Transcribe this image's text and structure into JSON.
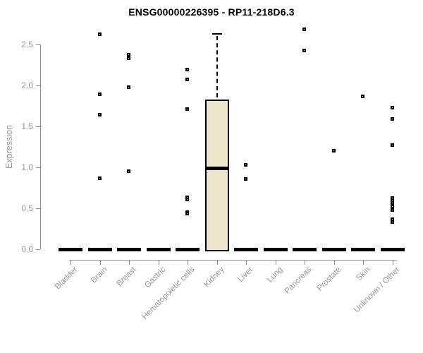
{
  "header": {
    "title": "ENSG00000226395 - RP11-218D6.3"
  },
  "chart_data": {
    "type": "boxplot",
    "title": "ENSG00000226395 - RP11-218D6.3",
    "xlabel": "",
    "ylabel": "Expression",
    "ylim": [
      0,
      2.7
    ],
    "yticks": [
      "0.0",
      "0.5",
      "1.0",
      "1.5",
      "2.0",
      "2.5"
    ],
    "grid": false,
    "legend": null,
    "categories": [
      "Bladder",
      "Brain",
      "Breast",
      "Gastric",
      "Hematopoietic cells",
      "Kidney",
      "Liver",
      "Lung",
      "Pancreas",
      "Prostate",
      "Skin",
      "Unknown / Other"
    ],
    "boxes": [
      {
        "category": "Bladder",
        "median": 0,
        "q1": 0,
        "q3": 0,
        "whisker_low": 0,
        "whisker_high": 0,
        "outliers": []
      },
      {
        "category": "Brain",
        "median": 0,
        "q1": 0,
        "q3": 0,
        "whisker_low": 0,
        "whisker_high": 0,
        "outliers": [
          2.62,
          1.89,
          1.64,
          0.86
        ]
      },
      {
        "category": "Breast",
        "median": 0,
        "q1": 0,
        "q3": 0,
        "whisker_low": 0,
        "whisker_high": 0,
        "outliers": [
          2.37,
          2.33,
          1.97,
          0.95
        ]
      },
      {
        "category": "Gastric",
        "median": 0,
        "q1": 0,
        "q3": 0,
        "whisker_low": 0,
        "whisker_high": 0,
        "outliers": []
      },
      {
        "category": "Hematopoietic cells",
        "median": 0,
        "q1": 0,
        "q3": 0,
        "whisker_low": 0,
        "whisker_high": 0,
        "outliers": [
          2.19,
          2.07,
          1.71,
          0.63,
          0.6,
          0.45,
          0.43
        ]
      },
      {
        "category": "Kidney",
        "median": 0.99,
        "q1": 0,
        "q3": 1.83,
        "whisker_low": 0,
        "whisker_high": 2.63,
        "outliers": []
      },
      {
        "category": "Liver",
        "median": 0,
        "q1": 0,
        "q3": 0,
        "whisker_low": 0,
        "whisker_high": 0,
        "outliers": [
          1.03,
          0.85
        ]
      },
      {
        "category": "Lung",
        "median": 0,
        "q1": 0,
        "q3": 0,
        "whisker_low": 0,
        "whisker_high": 0,
        "outliers": []
      },
      {
        "category": "Pancreas",
        "median": 0,
        "q1": 0,
        "q3": 0,
        "whisker_low": 0,
        "whisker_high": 0,
        "outliers": [
          2.68,
          2.42
        ]
      },
      {
        "category": "Prostate",
        "median": 0,
        "q1": 0,
        "q3": 0,
        "whisker_low": 0,
        "whisker_high": 0,
        "outliers": [
          1.2
        ]
      },
      {
        "category": "Skin",
        "median": 0,
        "q1": 0,
        "q3": 0,
        "whisker_low": 0,
        "whisker_high": 0,
        "outliers": [
          1.86
        ]
      },
      {
        "category": "Unknown / Other",
        "median": 0,
        "q1": 0,
        "q3": 0,
        "whisker_low": 0,
        "whisker_high": 0,
        "outliers": [
          1.72,
          1.59,
          1.27,
          0.62,
          0.59,
          0.56,
          0.52,
          0.47,
          0.36,
          0.33
        ]
      }
    ],
    "colors": {
      "box_fill": "#ECE6CA",
      "box_border": "#000000",
      "median": "#000000",
      "outlier": "#000000",
      "axis": "#8C8C8C",
      "tick_text": "#979797",
      "title_text": "#000000",
      "background": "#FFFFFF"
    }
  }
}
